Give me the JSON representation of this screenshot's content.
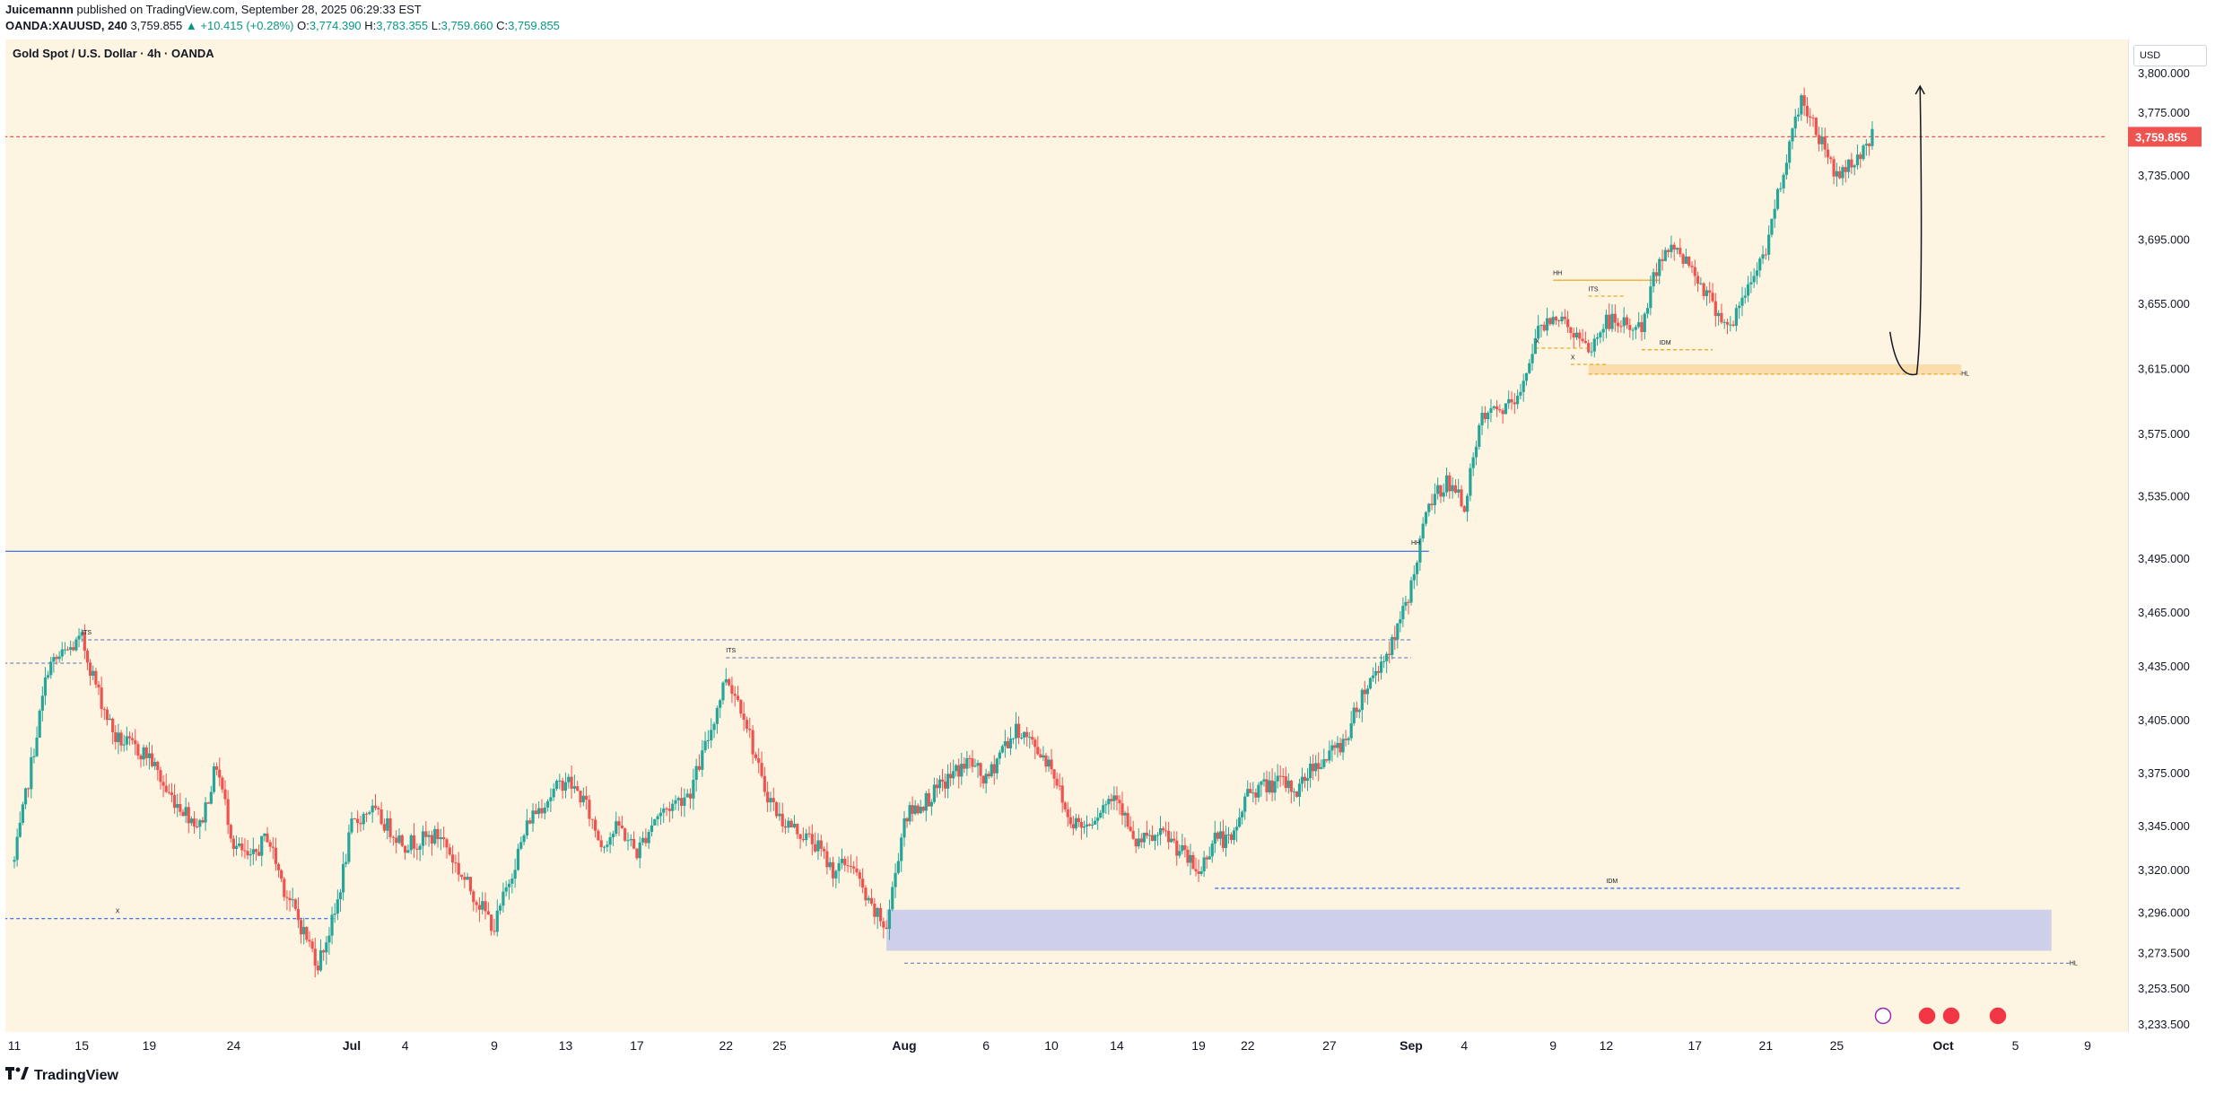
{
  "header": {
    "publisher": "Juicemannn",
    "published_text": "published on TradingView.com, September 28, 2025 06:29:33 EST",
    "symbol": "OANDA:XAUUSD, 240",
    "last": "3,759.855",
    "change": "▲ +10.415 (+0.28%)",
    "o_label": "O:",
    "o_value": "3,774.390",
    "h_label": "H:",
    "h_value": "3,783.355",
    "l_label": "L:",
    "l_value": "3,759.660",
    "c_label": "C:",
    "c_value": "3,759.855"
  },
  "footer": {
    "brand": "TradingView",
    "logo_icon": "tradingview-logo-icon"
  },
  "colors": {
    "background": "#fdf5e1",
    "up": "#26a69a",
    "down": "#ef5350",
    "price_tag": "#ef5350",
    "level_line": "#2962ff",
    "demand_zone": "#c9cbe9",
    "supply_zone": "#fbd9a6"
  },
  "chart_data": {
    "type": "candlestick",
    "title": "Gold Spot / U.S. Dollar · 4h · OANDA",
    "currency": "USD",
    "current_price": 3759.855,
    "current_price_label": "3,759.855",
    "y_ticks": [
      3800,
      3775,
      3735,
      3695,
      3655,
      3615,
      3575,
      3535,
      3495,
      3465,
      3435,
      3405,
      3375,
      3345,
      3320,
      3296,
      3273.5,
      3253.5,
      3233.5
    ],
    "y_tick_labels": [
      "3,800.000",
      "3,775.000",
      "3,735.000",
      "3,695.000",
      "3,655.000",
      "3,615.000",
      "3,575.000",
      "3,535.000",
      "3,495.000",
      "3,465.000",
      "3,435.000",
      "3,405.000",
      "3,375.000",
      "3,345.000",
      "3,320.000",
      "3,296.000",
      "3,273.500",
      "3,253.500",
      "3,233.500"
    ],
    "x_labels": [
      {
        "label": "11",
        "d": "2025-06-11"
      },
      {
        "label": "15",
        "d": "2025-06-15"
      },
      {
        "label": "19",
        "d": "2025-06-19"
      },
      {
        "label": "24",
        "d": "2025-06-24"
      },
      {
        "label": "Jul",
        "d": "2025-07-01"
      },
      {
        "label": "4",
        "d": "2025-07-04"
      },
      {
        "label": "9",
        "d": "2025-07-09"
      },
      {
        "label": "13",
        "d": "2025-07-13"
      },
      {
        "label": "17",
        "d": "2025-07-17"
      },
      {
        "label": "22",
        "d": "2025-07-22"
      },
      {
        "label": "25",
        "d": "2025-07-25"
      },
      {
        "label": "Aug",
        "d": "2025-08-01"
      },
      {
        "label": "6",
        "d": "2025-08-06"
      },
      {
        "label": "10",
        "d": "2025-08-10"
      },
      {
        "label": "14",
        "d": "2025-08-14"
      },
      {
        "label": "19",
        "d": "2025-08-19"
      },
      {
        "label": "22",
        "d": "2025-08-22"
      },
      {
        "label": "27",
        "d": "2025-08-27"
      },
      {
        "label": "Sep",
        "d": "2025-09-01"
      },
      {
        "label": "4",
        "d": "2025-09-04"
      },
      {
        "label": "9",
        "d": "2025-09-09"
      },
      {
        "label": "12",
        "d": "2025-09-12"
      },
      {
        "label": "17",
        "d": "2025-09-17"
      },
      {
        "label": "21",
        "d": "2025-09-21"
      },
      {
        "label": "25",
        "d": "2025-09-25"
      },
      {
        "label": "Oct",
        "d": "2025-10-01"
      },
      {
        "label": "5",
        "d": "2025-10-05"
      },
      {
        "label": "9",
        "d": "2025-10-09"
      }
    ],
    "path_points": [
      {
        "d": "2025-06-11",
        "p": 3325
      },
      {
        "d": "2025-06-12",
        "p": 3380
      },
      {
        "d": "2025-06-13",
        "p": 3435
      },
      {
        "d": "2025-06-15",
        "p": 3450
      },
      {
        "d": "2025-06-16",
        "p": 3420
      },
      {
        "d": "2025-06-17",
        "p": 3395
      },
      {
        "d": "2025-06-19",
        "p": 3385
      },
      {
        "d": "2025-06-20",
        "p": 3365
      },
      {
        "d": "2025-06-22",
        "p": 3345
      },
      {
        "d": "2025-06-23",
        "p": 3380
      },
      {
        "d": "2025-06-24",
        "p": 3335
      },
      {
        "d": "2025-06-25",
        "p": 3325
      },
      {
        "d": "2025-06-26",
        "p": 3340
      },
      {
        "d": "2025-06-27",
        "p": 3310
      },
      {
        "d": "2025-06-29",
        "p": 3268
      },
      {
        "d": "2025-06-30",
        "p": 3295
      },
      {
        "d": "2025-07-01",
        "p": 3345
      },
      {
        "d": "2025-07-02",
        "p": 3355
      },
      {
        "d": "2025-07-03",
        "p": 3345
      },
      {
        "d": "2025-07-04",
        "p": 3335
      },
      {
        "d": "2025-07-06",
        "p": 3340
      },
      {
        "d": "2025-07-07",
        "p": 3320
      },
      {
        "d": "2025-07-09",
        "p": 3288
      },
      {
        "d": "2025-07-10",
        "p": 3320
      },
      {
        "d": "2025-07-11",
        "p": 3350
      },
      {
        "d": "2025-07-13",
        "p": 3372
      },
      {
        "d": "2025-07-14",
        "p": 3360
      },
      {
        "d": "2025-07-15",
        "p": 3335
      },
      {
        "d": "2025-07-16",
        "p": 3345
      },
      {
        "d": "2025-07-17",
        "p": 3330
      },
      {
        "d": "2025-07-18",
        "p": 3350
      },
      {
        "d": "2025-07-20",
        "p": 3365
      },
      {
        "d": "2025-07-21",
        "p": 3395
      },
      {
        "d": "2025-07-22",
        "p": 3430
      },
      {
        "d": "2025-07-23",
        "p": 3410
      },
      {
        "d": "2025-07-24",
        "p": 3370
      },
      {
        "d": "2025-07-25",
        "p": 3350
      },
      {
        "d": "2025-07-27",
        "p": 3335
      },
      {
        "d": "2025-07-28",
        "p": 3320
      },
      {
        "d": "2025-07-29",
        "p": 3325
      },
      {
        "d": "2025-07-30",
        "p": 3300
      },
      {
        "d": "2025-07-31",
        "p": 3288
      },
      {
        "d": "2025-08-01",
        "p": 3350
      },
      {
        "d": "2025-08-03",
        "p": 3365
      },
      {
        "d": "2025-08-04",
        "p": 3375
      },
      {
        "d": "2025-08-05",
        "p": 3382
      },
      {
        "d": "2025-08-06",
        "p": 3370
      },
      {
        "d": "2025-08-07",
        "p": 3390
      },
      {
        "d": "2025-08-08",
        "p": 3400
      },
      {
        "d": "2025-08-10",
        "p": 3380
      },
      {
        "d": "2025-08-11",
        "p": 3350
      },
      {
        "d": "2025-08-12",
        "p": 3345
      },
      {
        "d": "2025-08-13",
        "p": 3355
      },
      {
        "d": "2025-08-14",
        "p": 3365
      },
      {
        "d": "2025-08-15",
        "p": 3335
      },
      {
        "d": "2025-08-17",
        "p": 3340
      },
      {
        "d": "2025-08-18",
        "p": 3330
      },
      {
        "d": "2025-08-19",
        "p": 3318
      },
      {
        "d": "2025-08-20",
        "p": 3340
      },
      {
        "d": "2025-08-21",
        "p": 3335
      },
      {
        "d": "2025-08-22",
        "p": 3365
      },
      {
        "d": "2025-08-24",
        "p": 3370
      },
      {
        "d": "2025-08-25",
        "p": 3365
      },
      {
        "d": "2025-08-26",
        "p": 3380
      },
      {
        "d": "2025-08-27",
        "p": 3385
      },
      {
        "d": "2025-08-28",
        "p": 3395
      },
      {
        "d": "2025-08-29",
        "p": 3420
      },
      {
        "d": "2025-08-31",
        "p": 3450
      },
      {
        "d": "2025-09-01",
        "p": 3480
      },
      {
        "d": "2025-09-02",
        "p": 3530
      },
      {
        "d": "2025-09-03",
        "p": 3545
      },
      {
        "d": "2025-09-04",
        "p": 3530
      },
      {
        "d": "2025-09-05",
        "p": 3585
      },
      {
        "d": "2025-09-07",
        "p": 3595
      },
      {
        "d": "2025-09-08",
        "p": 3635
      },
      {
        "d": "2025-09-09",
        "p": 3650
      },
      {
        "d": "2025-09-10",
        "p": 3640
      },
      {
        "d": "2025-09-11",
        "p": 3625
      },
      {
        "d": "2025-09-12",
        "p": 3645
      },
      {
        "d": "2025-09-14",
        "p": 3640
      },
      {
        "d": "2025-09-15",
        "p": 3685
      },
      {
        "d": "2025-09-16",
        "p": 3690
      },
      {
        "d": "2025-09-17",
        "p": 3675
      },
      {
        "d": "2025-09-18",
        "p": 3655
      },
      {
        "d": "2025-09-19",
        "p": 3640
      },
      {
        "d": "2025-09-21",
        "p": 3690
      },
      {
        "d": "2025-09-22",
        "p": 3740
      },
      {
        "d": "2025-09-23",
        "p": 3785
      },
      {
        "d": "2025-09-24",
        "p": 3760
      },
      {
        "d": "2025-09-25",
        "p": 3735
      },
      {
        "d": "2025-09-26",
        "p": 3745
      },
      {
        "d": "2025-09-27",
        "p": 3759.855
      }
    ],
    "zones": [
      {
        "name": "demand-zone",
        "from": "2025-07-31",
        "to": "2025-10-07",
        "low": 3275,
        "high": 3298,
        "color": "#c9cbe9"
      },
      {
        "name": "supply-zone",
        "from": "2025-09-11",
        "to": "2025-10-02",
        "low": 3612,
        "high": 3618,
        "color": "#fbd9a6"
      }
    ],
    "hlines": [
      {
        "name": "resistance-line",
        "from": "2025-06-10",
        "to": "2025-09-02",
        "price": 3500,
        "color": "#2962ff",
        "dash": false
      },
      {
        "name": "dotted-level-its-left",
        "from": "2025-06-15",
        "to": "2025-09-01",
        "price": 3450,
        "color": "#7a8ac9",
        "dash": true
      },
      {
        "name": "dotted-level-its-mid",
        "from": "2025-07-22",
        "to": "2025-09-01",
        "price": 3440,
        "color": "#7a8ac9",
        "dash": true
      },
      {
        "name": "dotted-level-left-short",
        "from": "2025-06-10",
        "to": "2025-06-15",
        "price": 3437,
        "color": "#7a8ac9",
        "dash": true
      },
      {
        "name": "dashed-level-x-left",
        "from": "2025-06-10",
        "to": "2025-06-30",
        "price": 3293,
        "color": "#2962ff",
        "dash": true
      },
      {
        "name": "dashed-level-idm",
        "from": "2025-08-20",
        "to": "2025-10-02",
        "price": 3310,
        "color": "#2962ff",
        "dash": true
      },
      {
        "name": "dotted-level-hl-bottom",
        "from": "2025-08-01",
        "to": "2025-10-08",
        "price": 3268,
        "color": "#7a8ac9",
        "dash": true
      },
      {
        "name": "hh-line",
        "from": "2025-09-09",
        "to": "2025-09-15",
        "price": 3670,
        "color": "#e8a20c",
        "dash": false
      },
      {
        "name": "its-line",
        "from": "2025-09-11",
        "to": "2025-09-13",
        "price": 3660,
        "color": "#e8a20c",
        "dash": true
      },
      {
        "name": "idm-line",
        "from": "2025-09-14",
        "to": "2025-09-18",
        "price": 3627,
        "color": "#e8a20c",
        "dash": true
      },
      {
        "name": "x-line-top",
        "from": "2025-09-08",
        "to": "2025-09-11",
        "price": 3628,
        "color": "#e8a20c",
        "dash": true
      },
      {
        "name": "x-line-low",
        "from": "2025-09-10",
        "to": "2025-09-12",
        "price": 3618,
        "color": "#e8a20c",
        "dash": true
      },
      {
        "name": "hl-line-top",
        "from": "2025-09-11",
        "to": "2025-10-02",
        "price": 3612,
        "color": "#e8a20c",
        "dash": true
      },
      {
        "name": "current-price-line",
        "from": "2025-06-10",
        "to": "2025-10-10",
        "price": 3759.855,
        "color": "#ef5350",
        "dash": true
      }
    ],
    "annotations": [
      {
        "text": "ITS",
        "d": "2025-06-15",
        "p": 3452
      },
      {
        "text": "ITS",
        "d": "2025-07-22",
        "p": 3442
      },
      {
        "text": "X",
        "d": "2025-06-17",
        "p": 3295
      },
      {
        "text": "IDM",
        "d": "2025-09-12",
        "p": 3312
      },
      {
        "text": "HL",
        "d": "2025-10-08",
        "p": 3266
      },
      {
        "text": "HH",
        "d": "2025-09-01",
        "p": 3503
      },
      {
        "text": "HH",
        "d": "2025-09-09",
        "p": 3672
      },
      {
        "text": "ITS",
        "d": "2025-09-11",
        "p": 3662
      },
      {
        "text": "X",
        "d": "2025-09-08",
        "p": 3630
      },
      {
        "text": "X",
        "d": "2025-09-10",
        "p": 3620
      },
      {
        "text": "IDM",
        "d": "2025-09-15",
        "p": 3629
      },
      {
        "text": "HL",
        "d": "2025-10-02",
        "p": 3610
      }
    ],
    "projection_arrow": {
      "d_start": "2025-09-28",
      "p_start": 3638,
      "d_bottom": "2025-09-29",
      "p_bottom": 3612,
      "d_end": "2025-09-30",
      "p_end": 3792
    },
    "event_icons": [
      "lightning-event-icon",
      "us-flag-event-icon",
      "us-flag-event-icon",
      "us-flag-event-icon"
    ]
  }
}
